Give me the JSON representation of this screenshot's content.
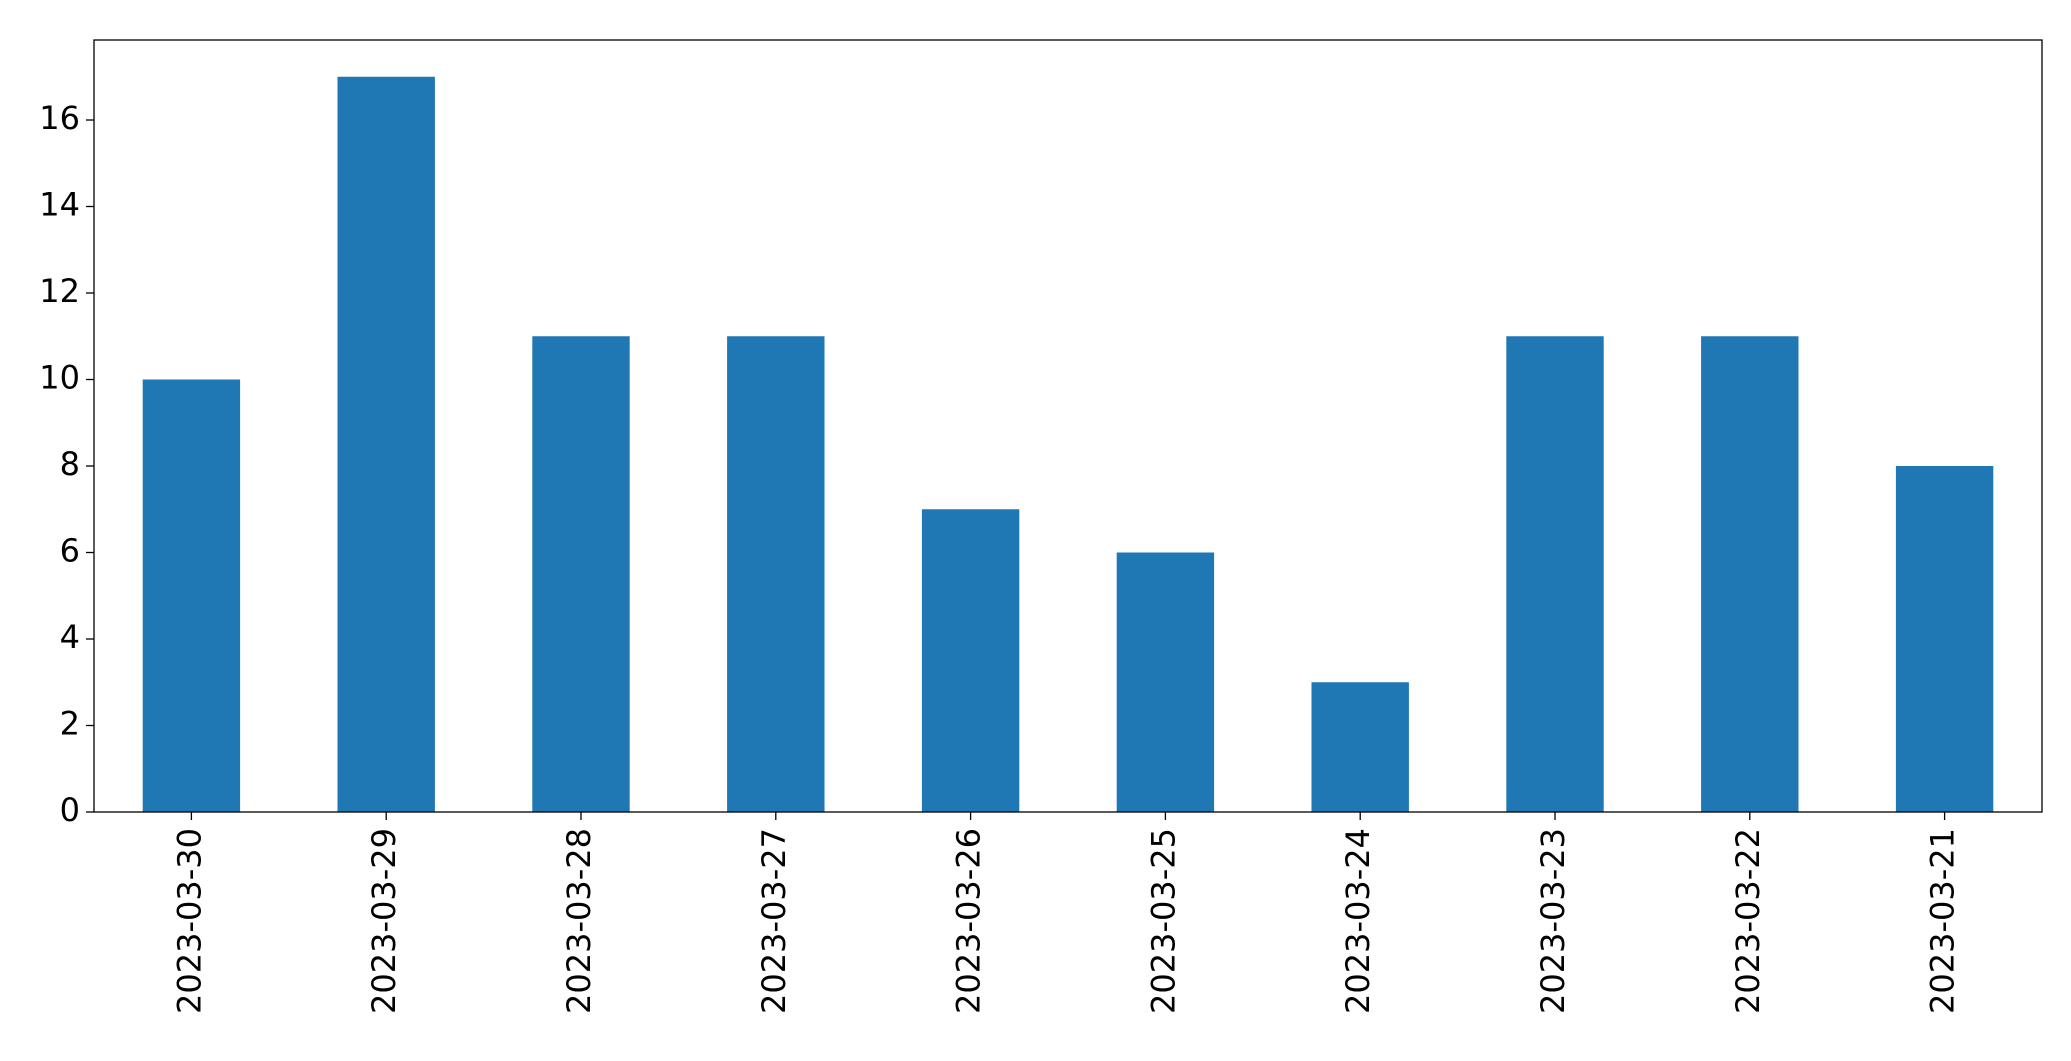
{
  "chart_data": {
    "type": "bar",
    "categories": [
      "2023-03-30",
      "2023-03-29",
      "2023-03-28",
      "2023-03-27",
      "2023-03-26",
      "2023-03-25",
      "2023-03-24",
      "2023-03-23",
      "2023-03-22",
      "2023-03-21"
    ],
    "values": [
      10,
      17,
      11,
      11,
      7,
      6,
      3,
      11,
      11,
      8
    ],
    "color": "#1f77b4",
    "ylim": [
      0,
      17.85
    ],
    "yticks": [
      0,
      2,
      4,
      6,
      8,
      10,
      12,
      14,
      16
    ],
    "grid": false
  }
}
